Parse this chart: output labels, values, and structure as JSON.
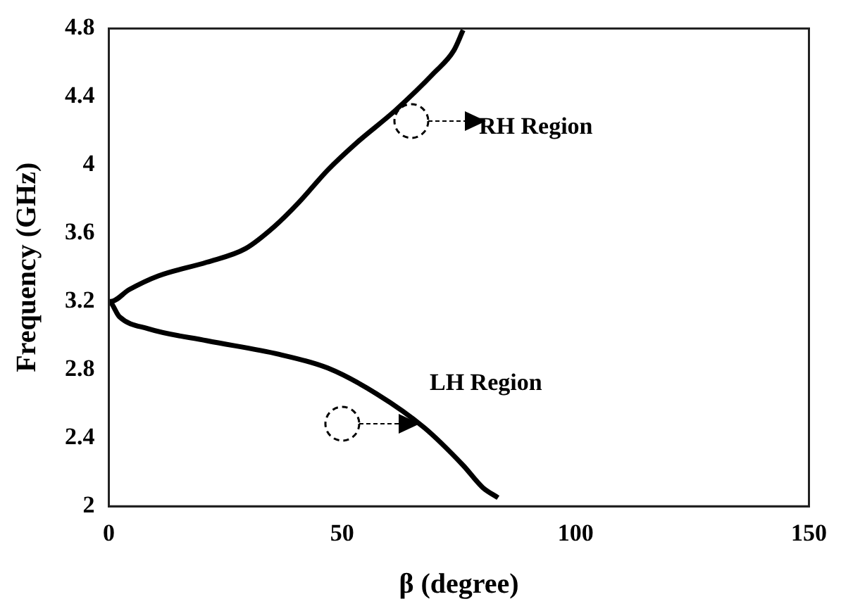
{
  "chart_data": {
    "type": "line",
    "xlabel": "β (degree)",
    "ylabel": "Frequency (GHz)",
    "x": [
      83.4,
      80.1,
      75.9,
      67.6,
      57.3,
      46.9,
      36.5,
      21,
      8.5,
      2.3,
      0,
      0.4,
      4.4,
      10.6,
      21,
      29.3,
      35.5,
      40.7,
      46.9,
      53.1,
      61.4,
      69.7,
      73.9,
      75.9
    ],
    "values": [
      2.05,
      2.11,
      2.24,
      2.46,
      2.66,
      2.81,
      2.89,
      2.97,
      3.04,
      3.11,
      3.2,
      3.2,
      3.27,
      3.35,
      3.43,
      3.51,
      3.64,
      3.78,
      3.97,
      4.13,
      4.32,
      4.54,
      4.67,
      4.79
    ],
    "color": "#000000",
    "marker": "none",
    "line_style": "solid",
    "grid": false,
    "legend": false,
    "xlim": [
      0,
      150
    ],
    "xticks": [
      0,
      50,
      100,
      150
    ],
    "ylim": [
      2,
      4.8
    ],
    "yticks": [
      2,
      2.4,
      2.8,
      3.2,
      3.6,
      4,
      4.4,
      4.8
    ],
    "annotations": [
      "RH Region",
      "LH Region"
    ]
  }
}
